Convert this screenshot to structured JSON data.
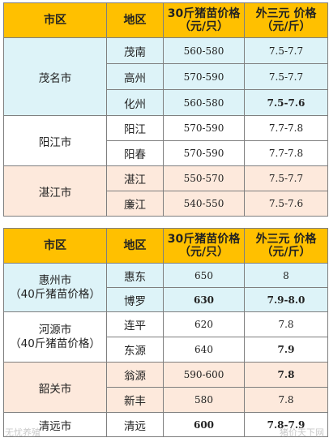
{
  "header": {
    "col_city": "市区",
    "col_area": "地区",
    "col_piglet_line1": "30斤猪苗价格",
    "col_piglet_line2": "（元/只）",
    "col_hog_line1": "外三元 价格",
    "col_hog_line2": "（元/斤）"
  },
  "table1": {
    "groups": [
      {
        "city": "茂名市",
        "color": "blue",
        "rows": [
          {
            "area": "茂南",
            "piglet": "560-580",
            "hog": "7.5-7.7"
          },
          {
            "area": "高州",
            "piglet": "570-590",
            "hog": "7.5-7.7"
          },
          {
            "area": "化州",
            "piglet": "560-580",
            "hog": "7.5-7.6"
          }
        ]
      },
      {
        "city": "阳江市",
        "color": "white",
        "rows": [
          {
            "area": "阳江",
            "piglet": "570-590",
            "hog": "7.7-7.8"
          },
          {
            "area": "阳春",
            "piglet": "570-590",
            "hog": "7.7-7.8"
          }
        ]
      },
      {
        "city": "湛江市",
        "color": "peach",
        "rows": [
          {
            "area": "湛江",
            "piglet": "550-570",
            "hog": "7.5-7.7"
          },
          {
            "area": "廉江",
            "piglet": "540-550",
            "hog": "7.5-7.6"
          }
        ]
      }
    ]
  },
  "table2": {
    "groups": [
      {
        "city_line1": "惠州市",
        "city_line2": "（40斤猪苗价格）",
        "color": "blue",
        "rows": [
          {
            "area": "惠东",
            "piglet": "650",
            "hog": "8"
          },
          {
            "area": "博罗",
            "piglet": "630",
            "hog": "7.9-8.0"
          }
        ]
      },
      {
        "city_line1": "河源市",
        "city_line2": "（40斤猪苗价格）",
        "color": "white",
        "rows": [
          {
            "area": "连平",
            "piglet": "620",
            "hog": "7.8"
          },
          {
            "area": "东源",
            "piglet": "640",
            "hog": "7.9"
          }
        ]
      },
      {
        "city_line1": "韶关市",
        "city_line2": "",
        "color": "peach",
        "rows": [
          {
            "area": "翁源",
            "piglet": "590-600",
            "hog": "7.8"
          },
          {
            "area": "新丰",
            "piglet": "580",
            "hog": "7.8"
          }
        ]
      },
      {
        "city_line1": "清远市",
        "city_line2": "",
        "color": "white",
        "rows": [
          {
            "area": "清远",
            "piglet": "600",
            "hog": "7.8-7.9"
          }
        ]
      }
    ]
  },
  "watermarks": {
    "left": "无忧养殖",
    "right": "猪价天下网"
  }
}
